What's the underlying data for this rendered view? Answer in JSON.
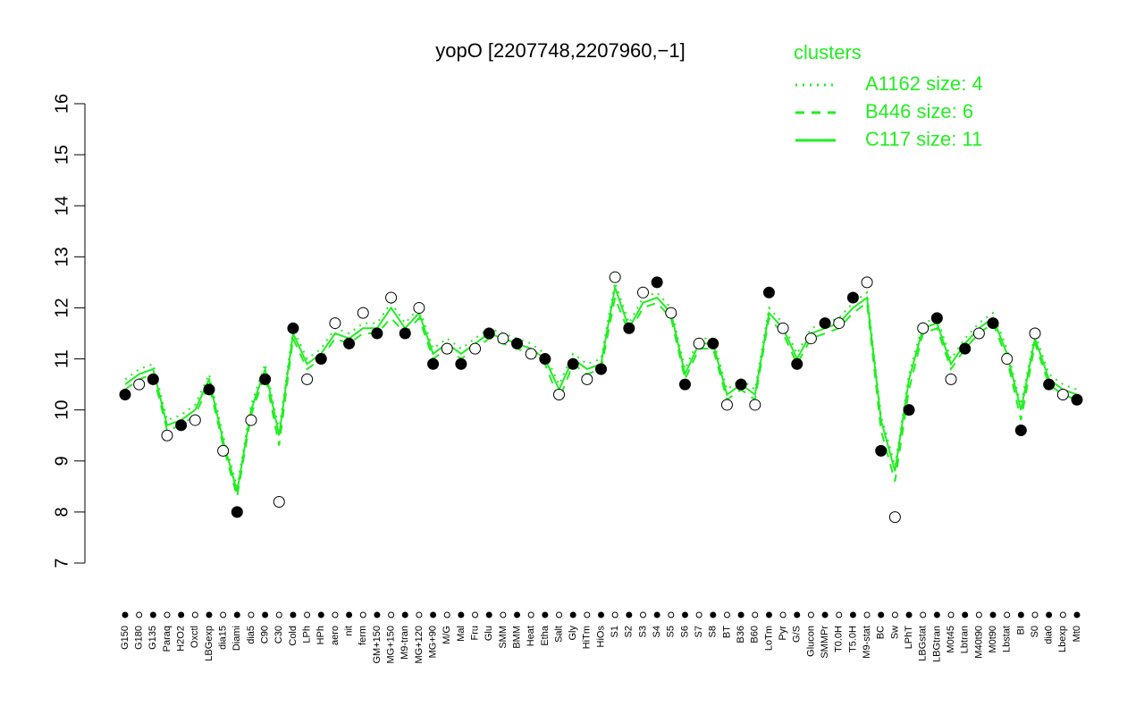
{
  "chart_data": {
    "type": "line",
    "title": "yopO [2207748,2207960,−1]",
    "legend_title": "clusters",
    "legend_position": "top-right",
    "ylim": [
      7,
      16
    ],
    "yticks": [
      7,
      8,
      9,
      10,
      11,
      12,
      13,
      14,
      15,
      16
    ],
    "point_color": "#000000",
    "categories": [
      "G150",
      "G180",
      "G135",
      "Paraq",
      "H2O2",
      "Oxctl",
      "LBGexp",
      "dia15",
      "Diami",
      "dia5",
      "C90",
      "C30",
      "Cold",
      "LPh",
      "HPh",
      "aero",
      "nit",
      "ferm",
      "GM+150",
      "MG+150",
      "M9-tran",
      "MG+120",
      "MG+90",
      "M/G",
      "Mal",
      "Fru",
      "Glu",
      "SMM",
      "BMM",
      "Heat",
      "Etha",
      "Salt",
      "Gly",
      "HiTm",
      "HiOs",
      "S1",
      "S2",
      "S3",
      "S4",
      "S5",
      "S6",
      "S7",
      "S8",
      "BT",
      "B36",
      "B60",
      "LoTm",
      "Pyr",
      "G/S",
      "Glucon",
      "SMMPr",
      "T0.0H",
      "T5.0H",
      "M9-stat",
      "BC",
      "Sw",
      "LPhT",
      "LBGstat",
      "LBGtran",
      "M0t45",
      "Lbtran",
      "M40t90",
      "M0t90",
      "Lbstat",
      "BI",
      "S0",
      "dia0",
      "Lbexp",
      "Mt0"
    ],
    "values": [
      10.3,
      10.5,
      10.6,
      9.5,
      9.7,
      9.8,
      10.4,
      9.2,
      8.0,
      9.8,
      10.6,
      8.2,
      11.6,
      10.6,
      11.0,
      11.7,
      11.3,
      11.9,
      11.5,
      12.2,
      11.5,
      12.0,
      10.9,
      11.2,
      10.9,
      11.2,
      11.5,
      11.4,
      11.3,
      11.1,
      11.0,
      10.3,
      10.9,
      10.6,
      10.8,
      12.6,
      11.6,
      12.3,
      12.5,
      11.9,
      10.5,
      11.3,
      11.3,
      10.1,
      10.5,
      10.1,
      12.3,
      11.6,
      10.9,
      11.4,
      11.7,
      11.7,
      12.2,
      12.5,
      9.2,
      7.9,
      10.0,
      11.6,
      11.8,
      10.6,
      11.2,
      11.5,
      11.7,
      11.0,
      9.6,
      11.5,
      10.5,
      10.3,
      10.2
    ],
    "series": [
      {
        "name": "A1162 size: 4",
        "color": "#22ee22",
        "dash": "dotted",
        "values": [
          10.6,
          10.8,
          10.9,
          9.8,
          9.9,
          10.1,
          10.7,
          9.5,
          8.5,
          10.1,
          10.9,
          9.6,
          11.6,
          11.0,
          11.2,
          11.6,
          11.5,
          11.7,
          11.7,
          12.1,
          11.7,
          12.0,
          11.2,
          11.4,
          11.2,
          11.4,
          11.6,
          11.5,
          11.4,
          11.3,
          11.1,
          10.5,
          11.1,
          10.9,
          11.0,
          12.5,
          11.7,
          12.2,
          12.3,
          12.0,
          10.8,
          11.4,
          11.4,
          10.4,
          10.6,
          10.4,
          12.0,
          11.7,
          11.1,
          11.6,
          11.7,
          11.8,
          12.1,
          12.3,
          9.9,
          8.9,
          10.7,
          11.7,
          11.8,
          11.0,
          11.4,
          11.7,
          11.9,
          11.2,
          10.1,
          11.5,
          10.7,
          10.5,
          10.4
        ]
      },
      {
        "name": "B446 size: 6",
        "color": "#22ee22",
        "dash": "dashed",
        "values": [
          10.4,
          10.6,
          10.7,
          9.6,
          9.7,
          9.9,
          10.5,
          9.3,
          8.3,
          9.9,
          10.7,
          9.3,
          11.4,
          10.8,
          11.0,
          11.4,
          11.3,
          11.5,
          11.5,
          11.8,
          11.5,
          11.8,
          11.0,
          11.2,
          11.0,
          11.2,
          11.4,
          11.3,
          11.2,
          11.1,
          10.9,
          10.2,
          10.9,
          10.7,
          10.8,
          12.2,
          11.5,
          12.0,
          12.1,
          11.8,
          10.6,
          11.2,
          11.2,
          10.2,
          10.4,
          10.2,
          11.8,
          11.5,
          10.9,
          11.4,
          11.5,
          11.6,
          11.9,
          12.1,
          9.6,
          8.6,
          10.4,
          11.5,
          11.6,
          10.8,
          11.2,
          11.5,
          11.7,
          11.0,
          9.8,
          11.3,
          10.5,
          10.3,
          10.2
        ]
      },
      {
        "name": "C117 size: 11",
        "color": "#22ee22",
        "dash": "solid",
        "values": [
          10.5,
          10.7,
          10.8,
          9.7,
          9.8,
          10.0,
          10.6,
          9.4,
          8.4,
          10.0,
          10.8,
          9.5,
          11.5,
          10.9,
          11.1,
          11.5,
          11.4,
          11.6,
          11.6,
          12.0,
          11.6,
          11.9,
          11.1,
          11.3,
          11.1,
          11.3,
          11.5,
          11.4,
          11.3,
          11.2,
          11.0,
          10.4,
          11.0,
          10.8,
          10.9,
          12.4,
          11.6,
          12.1,
          12.2,
          11.9,
          10.7,
          11.3,
          11.3,
          10.3,
          10.5,
          10.3,
          11.9,
          11.6,
          11.0,
          11.5,
          11.6,
          11.7,
          12.0,
          12.2,
          9.8,
          8.8,
          10.6,
          11.6,
          11.7,
          10.9,
          11.3,
          11.6,
          11.8,
          11.1,
          10.0,
          11.4,
          10.6,
          10.4,
          10.3
        ]
      }
    ]
  }
}
